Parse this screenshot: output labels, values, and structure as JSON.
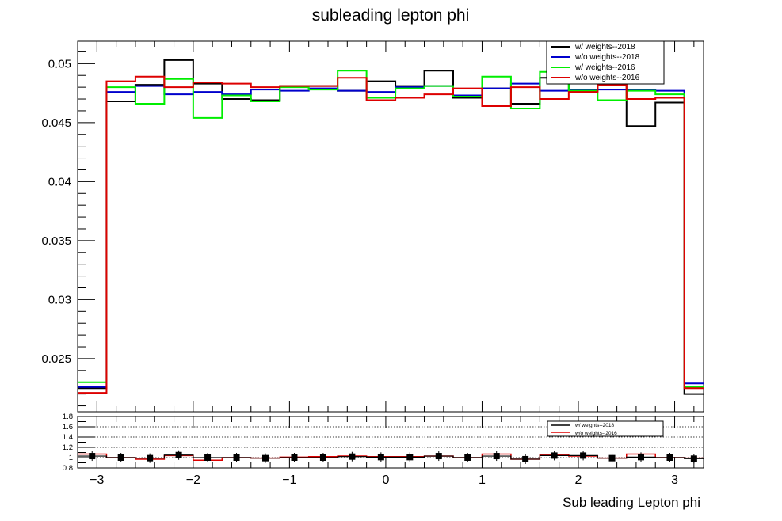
{
  "chart_data": [
    {
      "type": "step",
      "title": "subleading lepton phi",
      "xlabel": "",
      "ylabel": "",
      "xlim": [
        -3.2,
        3.3
      ],
      "ylim": [
        0.0205,
        0.0519
      ],
      "yticks_major": [
        0.025,
        0.03,
        0.035,
        0.04,
        0.045,
        0.05
      ],
      "ytick_labels": [
        "0.025",
        "0.03",
        "0.035",
        "0.04",
        "0.045",
        "0.05"
      ],
      "bin_edges": [
        -3.2,
        -2.9,
        -2.6,
        -2.3,
        -2.0,
        -1.7,
        -1.4,
        -1.1,
        -0.8,
        -0.5,
        -0.2,
        0.1,
        0.4,
        0.7,
        1.0,
        1.3,
        1.6,
        1.9,
        2.2,
        2.5,
        2.8,
        3.1,
        3.3
      ],
      "legend_position": "top-right",
      "series": [
        {
          "name": "w/ weights--2018",
          "color": "#000000",
          "values": [
            0.0225,
            0.0468,
            0.0482,
            0.0503,
            0.0483,
            0.047,
            0.0469,
            0.0481,
            0.0481,
            0.0477,
            0.0485,
            0.0481,
            0.0494,
            0.0471,
            0.0479,
            0.0466,
            0.0488,
            0.0477,
            0.049,
            0.0447,
            0.0467,
            0.022
          ]
        },
        {
          "name": "w/o weights--2018",
          "color": "#0000cc",
          "values": [
            0.0226,
            0.0476,
            0.0481,
            0.0474,
            0.0476,
            0.0474,
            0.0478,
            0.0477,
            0.0479,
            0.0477,
            0.0476,
            0.048,
            0.0481,
            0.0473,
            0.0479,
            0.0483,
            0.0477,
            0.0478,
            0.0478,
            0.0478,
            0.0477,
            0.0229
          ]
        },
        {
          "name": "w/ weights--2016",
          "color": "#00ee00",
          "values": [
            0.023,
            0.048,
            0.0466,
            0.0487,
            0.0454,
            0.0473,
            0.0468,
            0.048,
            0.0478,
            0.0494,
            0.0471,
            0.0479,
            0.0481,
            0.0472,
            0.0489,
            0.0462,
            0.0493,
            0.0477,
            0.0469,
            0.0477,
            0.0474,
            0.0226
          ]
        },
        {
          "name": "w/o weights--2016",
          "color": "#dd0000",
          "values": [
            0.0221,
            0.0485,
            0.0489,
            0.048,
            0.0484,
            0.0483,
            0.048,
            0.0481,
            0.0481,
            0.0488,
            0.0469,
            0.0471,
            0.0474,
            0.0479,
            0.0464,
            0.048,
            0.047,
            0.0476,
            0.0482,
            0.047,
            0.0471,
            0.0225
          ]
        }
      ]
    },
    {
      "type": "ratio",
      "xlabel": "Sub leading Lepton phi",
      "xlim": [
        -3.2,
        3.3
      ],
      "ylim": [
        0.8,
        1.8
      ],
      "yticks_major": [
        0.8,
        1,
        1.2,
        1.4,
        1.6,
        1.8
      ],
      "ytick_labels": [
        "0.8",
        "1",
        "1.2",
        "1.4",
        "1.6",
        "1.8"
      ],
      "gridlines_y": [
        1.2,
        1.4,
        1.6
      ],
      "xticks_major": [
        -3,
        -2,
        -1,
        0,
        1,
        2,
        3
      ],
      "xtick_labels": [
        "−3",
        "−2",
        "−1",
        "0",
        "1",
        "2",
        "3"
      ],
      "legend_position": "top-right",
      "series": [
        {
          "name": "w/ weights--2018",
          "color": "#000000",
          "marker": "square",
          "values": [
            1.03,
            1.0,
            0.99,
            1.05,
            1.0,
            1.0,
            0.99,
            1.0,
            1.0,
            1.02,
            1.01,
            1.01,
            1.03,
            1.0,
            1.03,
            0.97,
            1.04,
            1.04,
            0.99,
            1.01,
            1.0,
            0.98
          ]
        },
        {
          "name": "w/o weights--2016",
          "color": "#dd0000",
          "marker": "none",
          "values": [
            1.07,
            1.0,
            0.97,
            1.04,
            0.95,
            1.0,
            0.99,
            1.01,
            1.02,
            1.03,
            1.02,
            1.02,
            1.03,
            1.0,
            1.07,
            0.97,
            1.06,
            1.03,
            0.99,
            1.07,
            1.0,
            0.99
          ]
        }
      ]
    }
  ]
}
